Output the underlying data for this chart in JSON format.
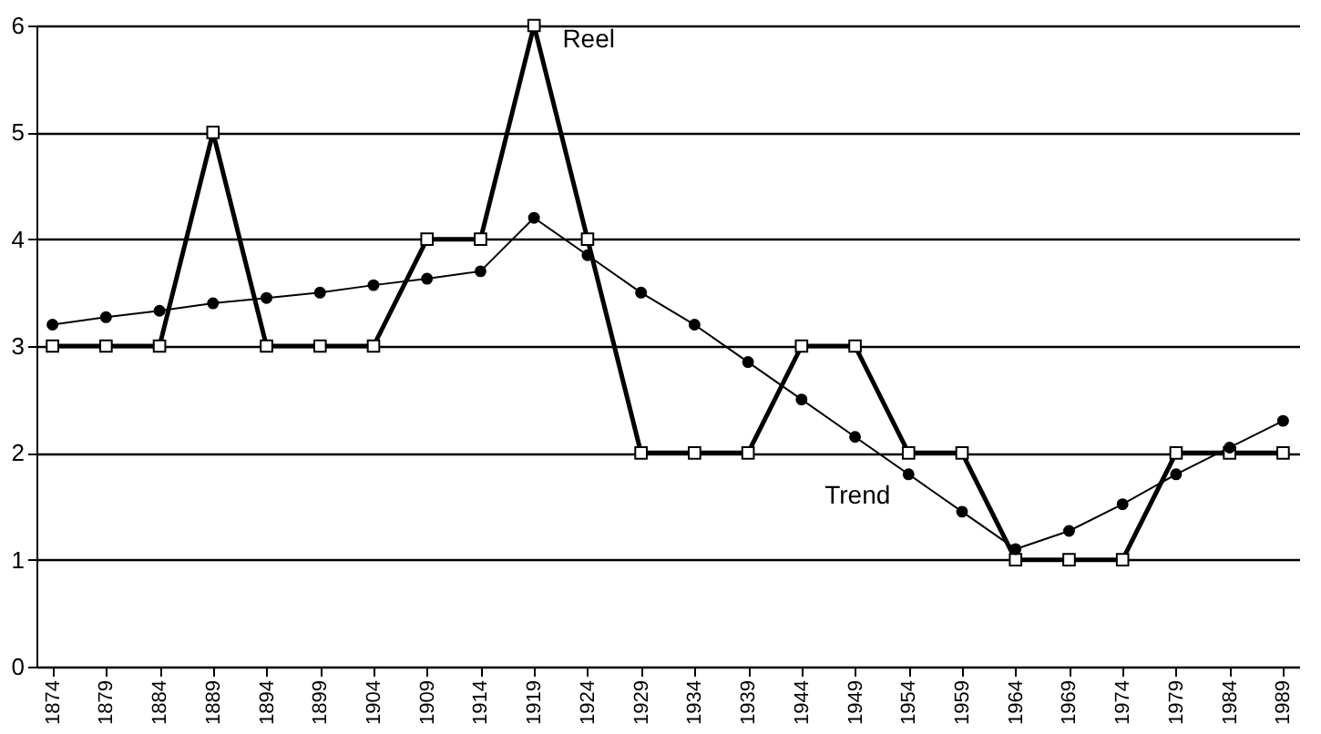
{
  "chart_data": {
    "type": "line",
    "categories": [
      "1874",
      "1879",
      "1884",
      "1889",
      "1894",
      "1899",
      "1904",
      "1909",
      "1914",
      "1919",
      "1924",
      "1929",
      "1934",
      "1939",
      "1944",
      "1949",
      "1954",
      "1959",
      "1964",
      "1969",
      "1974",
      "1979",
      "1984",
      "1989"
    ],
    "series": [
      {
        "name": "Reel",
        "color": "#000000",
        "marker": "square",
        "values": [
          3,
          3,
          3,
          5,
          3,
          3,
          3,
          4,
          4,
          6,
          4,
          2,
          2,
          2,
          3,
          3,
          2,
          2,
          1,
          1,
          1,
          2,
          2,
          2
        ]
      },
      {
        "name": "Trend",
        "color": "#000000",
        "marker": "circle",
        "values": [
          3.2,
          3.27,
          3.33,
          3.4,
          3.45,
          3.5,
          3.57,
          3.63,
          3.7,
          4.2,
          3.85,
          3.5,
          3.2,
          2.85,
          2.5,
          2.15,
          1.8,
          1.45,
          1.1,
          1.27,
          1.52,
          1.8,
          2.05,
          2.3
        ]
      }
    ],
    "ylim": [
      0,
      6
    ],
    "yticks": [
      0,
      1,
      2,
      3,
      4,
      5,
      6
    ],
    "grid": "y"
  }
}
